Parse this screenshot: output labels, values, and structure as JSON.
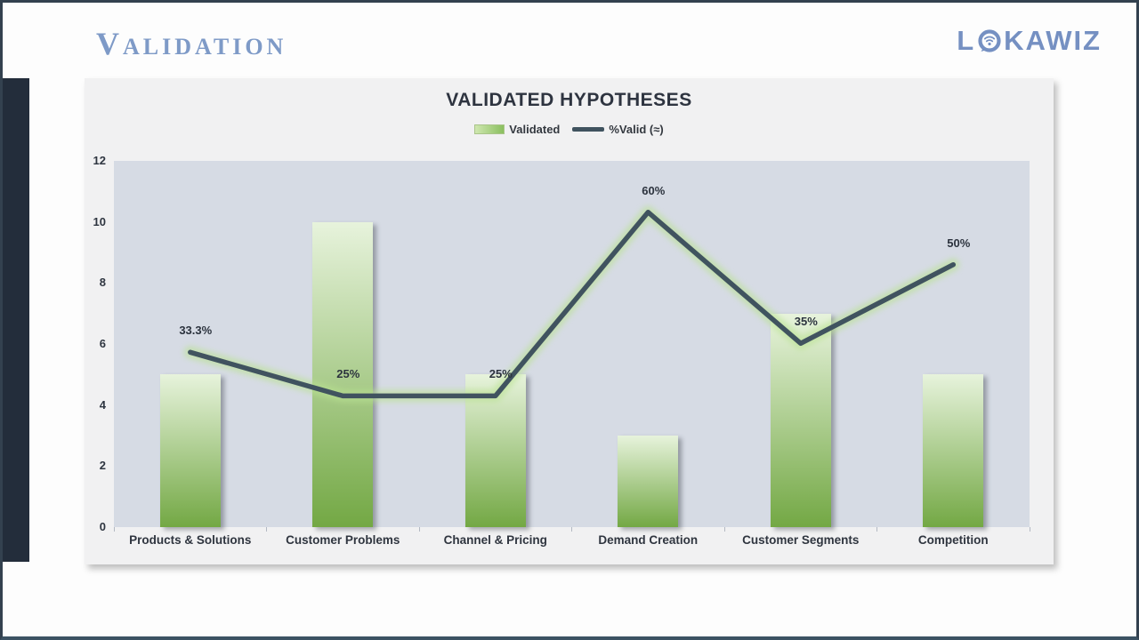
{
  "page": {
    "slide_title": "Validation",
    "logo": {
      "prefix": "L",
      "suffix": "KAWIZ"
    },
    "accent_color": "#7e9ac7",
    "sidebar_color": "#232d3b"
  },
  "chart_data": {
    "type": "bar",
    "title": "VALIDATED HYPOTHESES",
    "categories": [
      "Products & Solutions",
      "Customer Problems",
      "Channel & Pricing",
      "Demand Creation",
      "Customer Segments",
      "Competition"
    ],
    "series": [
      {
        "name": "Validated",
        "type": "bar",
        "values": [
          5,
          10,
          5,
          3,
          7,
          5
        ]
      },
      {
        "name": "%Valid (≈)",
        "type": "line",
        "values_pct": [
          33.3,
          25,
          25,
          60,
          35,
          50
        ],
        "labels": [
          "33.3%",
          "25%",
          "25%",
          "60%",
          "35%",
          "50%"
        ],
        "axis_values": [
          5.73,
          4.3,
          4.3,
          10.32,
          6.02,
          8.6
        ]
      }
    ],
    "ylim": [
      0,
      12
    ],
    "yticks": [
      0,
      2,
      4,
      6,
      8,
      10,
      12
    ],
    "grid": false,
    "legend_position": "top-center",
    "colors": {
      "bar_top": "#e7f3dc",
      "bar_bottom": "#73a844",
      "line": "#40535f",
      "line_glow": "#b9e291",
      "plot_bg": "#d6dbe4",
      "chart_bg": "#f1f1f2",
      "label": "#2c333e"
    }
  }
}
